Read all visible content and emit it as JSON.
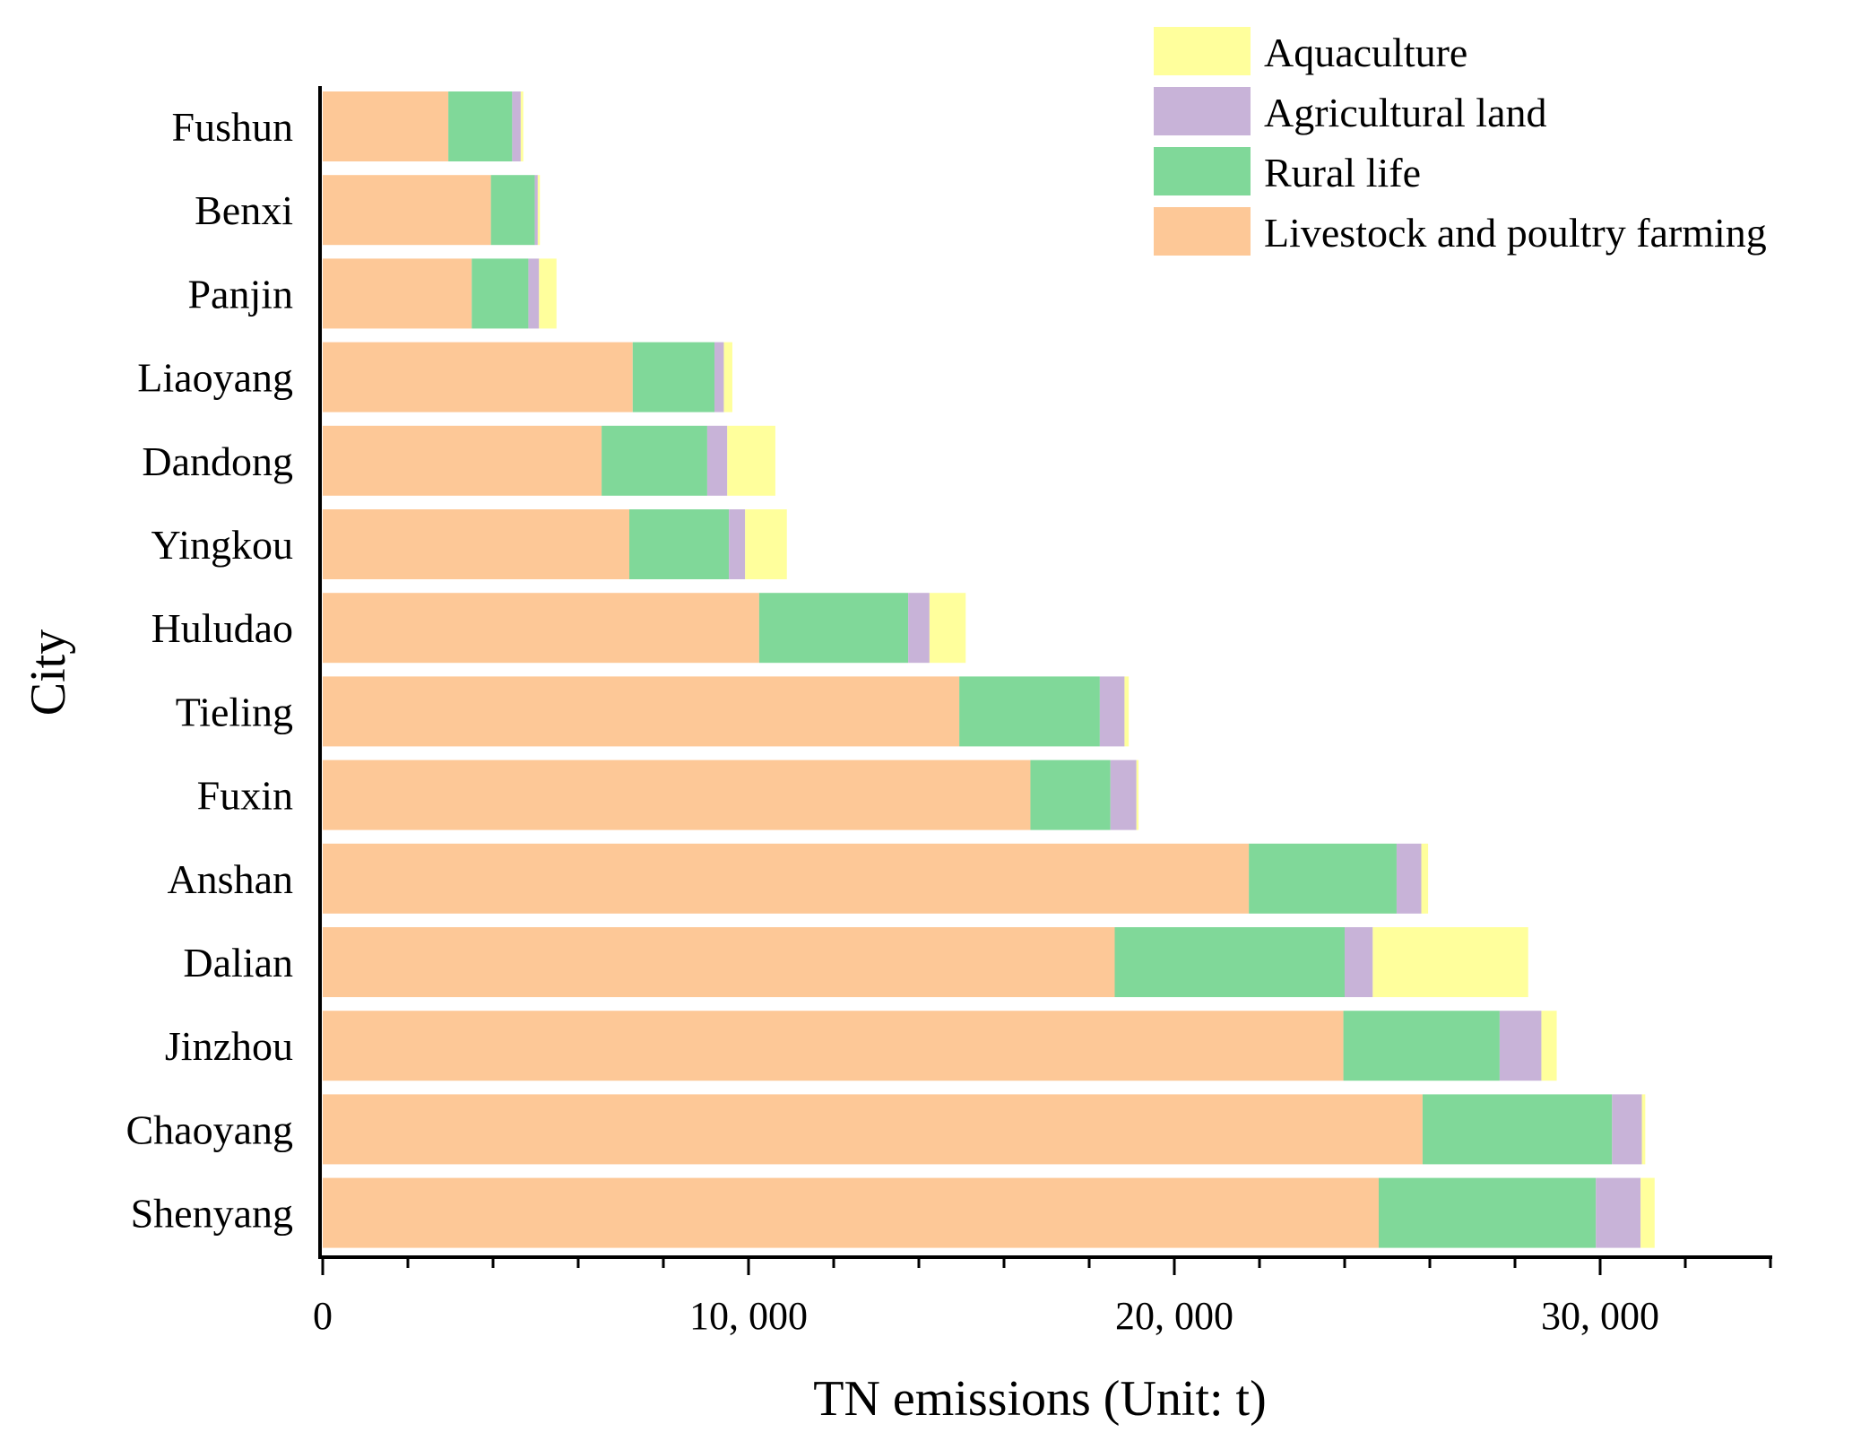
{
  "chart_data": {
    "type": "bar",
    "orientation": "horizontal",
    "stacked": true,
    "title": "",
    "xlabel": "TN emissions (Unit: t)",
    "ylabel": "City",
    "xlim": [
      0,
      34000
    ],
    "xticks": [
      0,
      10000,
      20000,
      30000
    ],
    "xtick_labels": [
      "0",
      "10, 000",
      "20, 000",
      "30, 000"
    ],
    "grid": false,
    "legend_position": "top-right",
    "categories": [
      "Fushun",
      "Benxi",
      "Panjin",
      "Liaoyang",
      "Dandong",
      "Yingkou",
      "Huludao",
      "Tieling",
      "Fuxin",
      "Anshan",
      "Dalian",
      "Jinzhou",
      "Chaoyang",
      "Shenyang"
    ],
    "series": [
      {
        "name": "Livestock and poultry farming",
        "color": "#FDC897",
        "values": [
          2950,
          3950,
          3500,
          7280,
          6550,
          7200,
          10250,
          14950,
          16620,
          21750,
          18600,
          23970,
          25830,
          24800
        ]
      },
      {
        "name": "Rural life",
        "color": "#80D899",
        "values": [
          1500,
          1030,
          1330,
          1920,
          2480,
          2340,
          3500,
          3300,
          1880,
          3470,
          5400,
          3670,
          4450,
          5100
        ]
      },
      {
        "name": "Agricultural land",
        "color": "#C8B3D8",
        "values": [
          200,
          70,
          250,
          220,
          470,
          380,
          500,
          580,
          610,
          580,
          660,
          980,
          700,
          1050
        ]
      },
      {
        "name": "Aquaculture",
        "color": "#FFFF9C",
        "values": [
          60,
          50,
          410,
          200,
          1130,
          980,
          850,
          100,
          50,
          160,
          3650,
          360,
          80,
          330
        ]
      }
    ],
    "legend_order": [
      "Aquaculture",
      "Agricultural land",
      "Rural life",
      "Livestock and poultry farming"
    ]
  }
}
